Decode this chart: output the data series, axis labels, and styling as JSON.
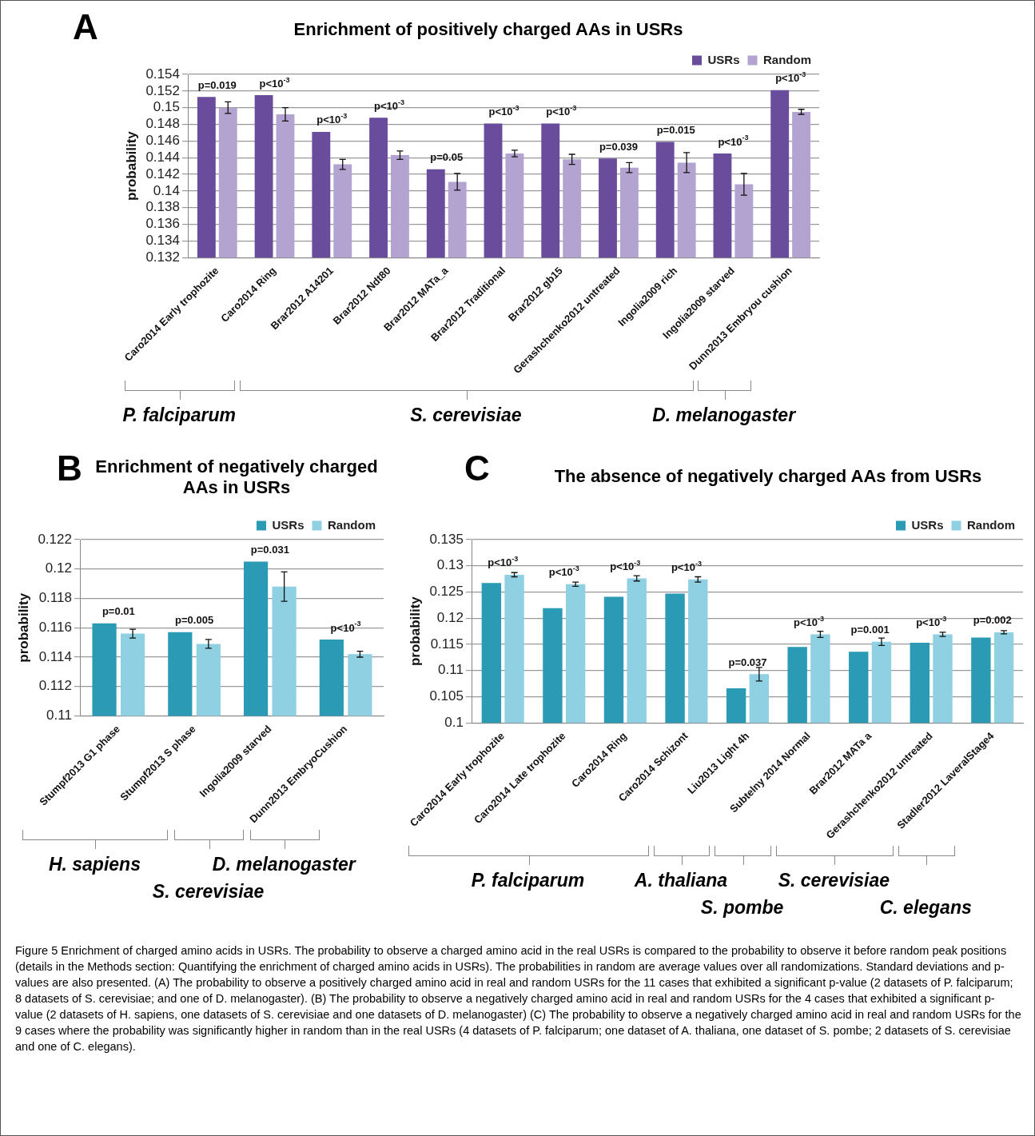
{
  "chart_data": [
    {
      "type": "bar",
      "title": "Enrichment of positively charged AAs in USRs",
      "ylabel": "probability",
      "categories": [
        "Caro2014 Early trophozite",
        "Caro2014 Ring",
        "Brar2012 A14201",
        "Brar2012 Ndt80",
        "Brar2012 MATa_a",
        "Brar2012 Traditional",
        "Brar2012 gb15",
        "Gerashchenko2012 untreated",
        "Ingolia2009 rich",
        "Ingolia2009 starved",
        "Dunn2013 Embryou cushion"
      ],
      "series": [
        {
          "name": "USRs",
          "color": "#6a4c9c",
          "values": [
            0.1513,
            0.1515,
            0.1471,
            0.1488,
            0.1426,
            0.1481,
            0.1481,
            0.1439,
            0.1459,
            0.1445,
            0.1521
          ]
        },
        {
          "name": "Random",
          "color": "#b3a3d0",
          "values": [
            0.15,
            0.1492,
            0.1432,
            0.1443,
            0.1411,
            0.1445,
            0.1438,
            0.1428,
            0.1434,
            0.1408,
            0.1495
          ],
          "errors": [
            0.0007,
            0.0008,
            0.0006,
            0.0005,
            0.001,
            0.0004,
            0.0006,
            0.0006,
            0.0012,
            0.0013,
            0.0003
          ]
        }
      ],
      "ylim": [
        0.132,
        0.154
      ],
      "yticks": [
        0.132,
        0.134,
        0.136,
        0.138,
        0.14,
        0.142,
        0.144,
        0.146,
        0.148,
        0.15,
        0.152,
        0.154
      ],
      "grid": "y",
      "legend": "top right",
      "annotations": [
        "A",
        "P. falciparum",
        "S. cerevisiae",
        "D. melanogaster",
        {
          "text": "p=0.019",
          "x": "Caro2014 Early trophozite",
          "y": 0.1513
        },
        {
          "text": "p<10$^{-3}$",
          "x": "Caro2014 Ring",
          "y": 0.1515
        },
        {
          "text": "p<10$^{-3}$",
          "x": "Brar2012 A14201",
          "y": 0.1471
        },
        {
          "text": "p<10$^{-3}$",
          "x": "Brar2012 Ndt80",
          "y": 0.1488
        },
        {
          "text": "p=0.05",
          "x": "Brar2012 MATa_a",
          "y": 0.1426
        },
        {
          "text": "p<10$^{-3}$",
          "x": "Brar2012 Traditional",
          "y": 0.1481
        },
        {
          "text": "p<10$^{-3}$",
          "x": "Brar2012 gb15",
          "y": 0.1481
        },
        {
          "text": "p=0.039",
          "x": "Gerashchenko2012 untreated",
          "y": 0.1439
        },
        {
          "text": "p=0.015",
          "x": "Ingolia2009 rich",
          "y": 0.1459
        },
        {
          "text": "p<10$^{-3}$",
          "x": "Ingolia2009 starved",
          "y": 0.1445
        },
        {
          "text": "p<10$^{-3}$",
          "x": "Dunn2013 Embryou cushion",
          "y": 0.1521
        }
      ]
    },
    {
      "type": "bar",
      "title": "Enrichment of negatively charged AAs in USRs",
      "ylabel": "probability",
      "categories": [
        "Stumpf2013 G1 phase",
        "Stumpf2013 S phase",
        "Ingolia2009 starved",
        "Dunn2013 EmbryoCushion"
      ],
      "series": [
        {
          "name": "USRs",
          "color": "#2a9ab5",
          "values": [
            0.1163,
            0.1157,
            0.1205,
            0.1152
          ]
        },
        {
          "name": "Random",
          "color": "#8fd0e2",
          "values": [
            0.1156,
            0.1149,
            0.1188,
            0.1142
          ],
          "errors": [
            0.0003,
            0.0003,
            0.001,
            0.0002
          ]
        }
      ],
      "ylim": [
        0.11,
        0.122
      ],
      "yticks": [
        0.11,
        0.112,
        0.114,
        0.116,
        0.118,
        0.12,
        0.122
      ],
      "grid": "y",
      "legend": "top right",
      "annotations": [
        "B",
        "H. sapiens",
        "S. cerevisiae",
        "D. melanogaster",
        {
          "text": "p=0.01",
          "x": "Stumpf2013 G1 phase",
          "y": 0.1163
        },
        {
          "text": "p=0.005",
          "x": "Stumpf2013 S phase",
          "y": 0.1157
        },
        {
          "text": "p=0.031",
          "x": "Ingolia2009 starved",
          "y": 0.1205
        },
        {
          "text": "p<10$^{-3}$",
          "x": "Dunn2013 EmbryoCushion",
          "y": 0.1152
        }
      ]
    },
    {
      "type": "bar",
      "title": "The absence of negatively charged AAs from USRs",
      "ylabel": "probability",
      "categories": [
        "Caro2014 Early trophozite",
        "Caro2014 Late trophozite",
        "Caro2014 Ring",
        "Caro2014 Schizont",
        "Liu2013 Light 4h",
        "Subtelny 2014 Normal",
        "Brar2012 MATa a",
        "Gerashchenko2012 untreated",
        "Stadler2012 LaveralStage4"
      ],
      "series": [
        {
          "name": "USRs",
          "color": "#2a9ab5",
          "values": [
            0.1267,
            0.1219,
            0.1241,
            0.1247,
            0.1066,
            0.1145,
            0.1136,
            0.1153,
            0.1163
          ]
        },
        {
          "name": "Random",
          "color": "#8fd0e2",
          "values": [
            0.1283,
            0.1265,
            0.1276,
            0.1274,
            0.1093,
            0.1169,
            0.1155,
            0.1169,
            0.1173
          ],
          "errors": [
            0.0004,
            0.0004,
            0.0005,
            0.0005,
            0.0013,
            0.0006,
            0.0007,
            0.0004,
            0.0003
          ]
        }
      ],
      "ylim": [
        0.1,
        0.135
      ],
      "yticks": [
        0.1,
        0.105,
        0.11,
        0.115,
        0.12,
        0.125,
        0.13,
        0.135
      ],
      "grid": "y",
      "legend": "top right",
      "annotations": [
        "C",
        "P. falciparum",
        "A. thaliana",
        "S. pombe",
        "S. cerevisiae",
        "C. elegans",
        {
          "text": "p<10$^{-3}$",
          "x": "Caro2014 Early trophozite",
          "y": 0.1283
        },
        {
          "text": "p<10$^{-3}$",
          "x": "Caro2014 Late trophozite",
          "y": 0.1265
        },
        {
          "text": "p<10$^{-3}$",
          "x": "Caro2014 Ring",
          "y": 0.1276
        },
        {
          "text": "p<10$^{-3}$",
          "x": "Caro2014 Schizont",
          "y": 0.1274
        },
        {
          "text": "p=0.037",
          "x": "Liu2013 Light 4h",
          "y": 0.1093
        },
        {
          "text": "p<10$^{-3}$",
          "x": "Subtelny 2014 Normal",
          "y": 0.1169
        },
        {
          "text": "p=0.001",
          "x": "Brar2012 MATa a",
          "y": 0.1155
        },
        {
          "text": "p<10$^{-3}$",
          "x": "Gerashchenko2012 untreated",
          "y": 0.1169
        },
        {
          "text": "p=0.002",
          "x": "Stadler2012 LaveralStage4",
          "y": 0.1173
        },
        "Figure 5 Enrichment of charged amino acids in USRs. The probability to observe a charged amino acid in the real USRs is compared to the probability to observe it before random peak positions (details in the Methods section: Quantifying the enrichment of charged amino acids in USRs). The probabilities in random are average values over all randomizations. Standard deviations and p-values are also presented. (A) The probability to observe a positively charged amino acid in real and random USRs for the 11 cases that exhibited a significant p-value (2 datasets of P. falciparum; 8 datasets of S. cerevisiae; and one of D. melanogaster). (B) The probability to observe a negatively charged amino acid in real and random USRs for the 4 cases that exhibited a significant p-value (2 datasets of H. sapiens, one datasets of S. cerevisiae and one datasets of D. melanogaster) (C) The probability to observe a negatively charged amino acid in real and random USRs for the 9 cases where the probability was significantly higher in random than in the real USRs (4 datasets of P. falciparum; one dataset of A. thaliana, one dataset of S. pombe; 2 datasets of S. cerevisiae and one of C. elegans)."
      ]
    }
  ]
}
